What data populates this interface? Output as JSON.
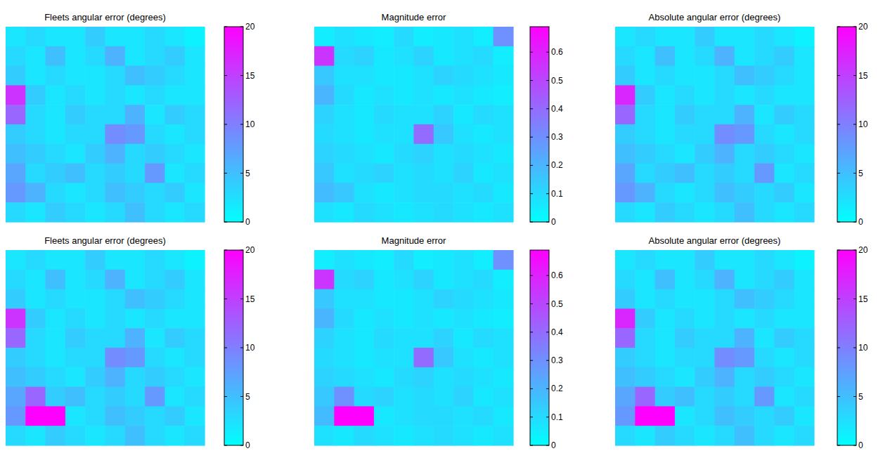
{
  "chart_data": [
    {
      "type": "heatmap",
      "title": "Fleets angular error (degrees)",
      "clim": [
        0,
        20
      ],
      "cticks": [
        0,
        5,
        10,
        15,
        20
      ],
      "cells": [
        [
          2,
          3,
          2,
          2,
          4,
          2,
          2,
          3,
          2,
          1
        ],
        [
          3,
          2,
          5,
          2,
          3,
          6,
          2,
          3,
          4,
          2
        ],
        [
          4,
          2,
          3,
          2,
          2,
          3,
          5,
          4,
          3,
          2
        ],
        [
          16,
          4,
          2,
          3,
          2,
          3,
          2,
          3,
          2,
          2
        ],
        [
          12,
          3,
          2,
          4,
          3,
          3,
          6,
          2,
          4,
          3
        ],
        [
          4,
          3,
          2,
          3,
          3,
          9,
          8,
          3,
          2,
          3
        ],
        [
          5,
          4,
          3,
          2,
          4,
          6,
          3,
          4,
          3,
          2
        ],
        [
          7,
          3,
          4,
          5,
          3,
          4,
          3,
          8,
          2,
          3
        ],
        [
          8,
          6,
          3,
          2,
          3,
          5,
          4,
          3,
          4,
          2
        ],
        [
          3,
          2,
          4,
          3,
          2,
          3,
          5,
          3,
          2,
          3
        ]
      ]
    },
    {
      "type": "heatmap",
      "title": "Magnitude error",
      "clim": [
        0,
        0.69
      ],
      "cticks": [
        0,
        0.1,
        0.2,
        0.3,
        0.4,
        0.5,
        0.6
      ],
      "cells": [
        [
          0.05,
          0.08,
          0.06,
          0.05,
          0.1,
          0.05,
          0.06,
          0.08,
          0.05,
          0.3
        ],
        [
          0.55,
          0.1,
          0.12,
          0.06,
          0.08,
          0.12,
          0.06,
          0.08,
          0.1,
          0.05
        ],
        [
          0.15,
          0.08,
          0.08,
          0.06,
          0.06,
          0.08,
          0.12,
          0.1,
          0.08,
          0.06
        ],
        [
          0.2,
          0.1,
          0.06,
          0.08,
          0.06,
          0.08,
          0.06,
          0.08,
          0.06,
          0.05
        ],
        [
          0.12,
          0.08,
          0.06,
          0.1,
          0.08,
          0.08,
          0.12,
          0.06,
          0.1,
          0.08
        ],
        [
          0.1,
          0.08,
          0.06,
          0.08,
          0.08,
          0.4,
          0.15,
          0.08,
          0.06,
          0.08
        ],
        [
          0.12,
          0.1,
          0.08,
          0.06,
          0.1,
          0.12,
          0.08,
          0.1,
          0.08,
          0.06
        ],
        [
          0.15,
          0.08,
          0.1,
          0.12,
          0.08,
          0.1,
          0.08,
          0.12,
          0.06,
          0.08
        ],
        [
          0.18,
          0.15,
          0.08,
          0.06,
          0.08,
          0.1,
          0.1,
          0.08,
          0.1,
          0.06
        ],
        [
          0.08,
          0.06,
          0.1,
          0.08,
          0.06,
          0.08,
          0.1,
          0.08,
          0.06,
          0.08
        ]
      ]
    },
    {
      "type": "heatmap",
      "title": "Absolute angular error (degrees)",
      "clim": [
        0,
        20
      ],
      "cticks": [
        0,
        5,
        10,
        15,
        20
      ],
      "cells": [
        [
          2,
          3,
          2,
          2,
          4,
          2,
          2,
          3,
          2,
          1
        ],
        [
          3,
          2,
          5,
          2,
          3,
          6,
          2,
          3,
          4,
          2
        ],
        [
          4,
          2,
          3,
          2,
          2,
          3,
          5,
          4,
          3,
          2
        ],
        [
          17,
          4,
          2,
          3,
          2,
          3,
          2,
          3,
          2,
          2
        ],
        [
          12,
          3,
          2,
          4,
          3,
          3,
          6,
          2,
          4,
          3
        ],
        [
          4,
          3,
          2,
          3,
          3,
          9,
          8,
          3,
          2,
          3
        ],
        [
          5,
          4,
          3,
          2,
          4,
          6,
          3,
          4,
          3,
          2
        ],
        [
          7,
          3,
          4,
          5,
          3,
          4,
          3,
          8,
          2,
          3
        ],
        [
          8,
          6,
          3,
          2,
          3,
          5,
          4,
          3,
          4,
          2
        ],
        [
          3,
          2,
          4,
          3,
          2,
          3,
          5,
          3,
          2,
          3
        ]
      ]
    },
    {
      "type": "heatmap",
      "title": "Fleets angular error (degrees)",
      "clim": [
        0,
        20
      ],
      "cticks": [
        0,
        5,
        10,
        15,
        20
      ],
      "cells": [
        [
          2,
          3,
          2,
          2,
          4,
          2,
          2,
          3,
          2,
          1
        ],
        [
          3,
          2,
          5,
          2,
          3,
          6,
          2,
          3,
          4,
          2
        ],
        [
          4,
          2,
          3,
          2,
          2,
          3,
          5,
          4,
          3,
          2
        ],
        [
          16,
          4,
          2,
          3,
          2,
          3,
          2,
          3,
          2,
          2
        ],
        [
          12,
          3,
          2,
          4,
          3,
          3,
          6,
          2,
          4,
          3
        ],
        [
          4,
          3,
          2,
          3,
          3,
          9,
          8,
          3,
          2,
          3
        ],
        [
          5,
          4,
          3,
          2,
          4,
          6,
          3,
          4,
          3,
          2
        ],
        [
          7,
          12,
          4,
          5,
          3,
          4,
          3,
          8,
          2,
          3
        ],
        [
          8,
          20,
          20,
          2,
          3,
          5,
          4,
          3,
          4,
          2
        ],
        [
          3,
          2,
          4,
          3,
          2,
          3,
          5,
          3,
          2,
          3
        ]
      ]
    },
    {
      "type": "heatmap",
      "title": "Magnitude error",
      "clim": [
        0,
        0.69
      ],
      "cticks": [
        0,
        0.1,
        0.2,
        0.3,
        0.4,
        0.5,
        0.6
      ],
      "cells": [
        [
          0.05,
          0.08,
          0.06,
          0.05,
          0.1,
          0.05,
          0.06,
          0.08,
          0.05,
          0.3
        ],
        [
          0.55,
          0.1,
          0.12,
          0.06,
          0.08,
          0.12,
          0.06,
          0.08,
          0.1,
          0.05
        ],
        [
          0.15,
          0.08,
          0.08,
          0.06,
          0.06,
          0.08,
          0.12,
          0.1,
          0.08,
          0.06
        ],
        [
          0.2,
          0.1,
          0.06,
          0.08,
          0.06,
          0.08,
          0.06,
          0.08,
          0.06,
          0.05
        ],
        [
          0.12,
          0.08,
          0.06,
          0.1,
          0.08,
          0.08,
          0.12,
          0.06,
          0.1,
          0.08
        ],
        [
          0.1,
          0.08,
          0.06,
          0.08,
          0.08,
          0.4,
          0.15,
          0.08,
          0.06,
          0.08
        ],
        [
          0.12,
          0.1,
          0.08,
          0.06,
          0.1,
          0.12,
          0.08,
          0.1,
          0.08,
          0.06
        ],
        [
          0.15,
          0.3,
          0.1,
          0.12,
          0.08,
          0.1,
          0.08,
          0.12,
          0.06,
          0.08
        ],
        [
          0.18,
          0.69,
          0.69,
          0.06,
          0.08,
          0.1,
          0.1,
          0.08,
          0.1,
          0.06
        ],
        [
          0.08,
          0.06,
          0.1,
          0.08,
          0.06,
          0.08,
          0.1,
          0.08,
          0.06,
          0.08
        ]
      ]
    },
    {
      "type": "heatmap",
      "title": "Absolute angular error (degrees)",
      "clim": [
        0,
        20
      ],
      "cticks": [
        0,
        5,
        10,
        15,
        20
      ],
      "cells": [
        [
          2,
          3,
          2,
          2,
          4,
          2,
          2,
          3,
          2,
          1
        ],
        [
          3,
          2,
          5,
          2,
          3,
          6,
          2,
          3,
          4,
          2
        ],
        [
          4,
          2,
          3,
          2,
          2,
          3,
          5,
          4,
          3,
          2
        ],
        [
          17,
          4,
          2,
          3,
          2,
          3,
          2,
          3,
          2,
          2
        ],
        [
          12,
          3,
          2,
          4,
          3,
          3,
          6,
          2,
          4,
          3
        ],
        [
          4,
          3,
          2,
          3,
          3,
          9,
          8,
          3,
          2,
          3
        ],
        [
          5,
          4,
          3,
          2,
          4,
          6,
          3,
          4,
          3,
          2
        ],
        [
          7,
          12,
          4,
          5,
          3,
          4,
          3,
          8,
          2,
          3
        ],
        [
          8,
          20,
          20,
          2,
          3,
          5,
          4,
          3,
          4,
          2
        ],
        [
          3,
          2,
          4,
          3,
          2,
          3,
          5,
          3,
          2,
          3
        ]
      ]
    }
  ]
}
